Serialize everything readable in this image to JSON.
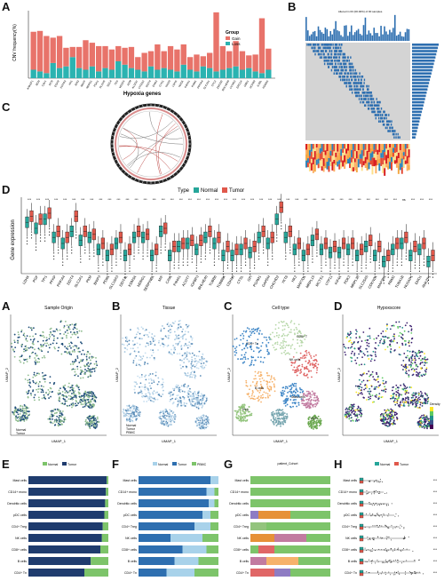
{
  "panel_letters": [
    "A",
    "B",
    "C",
    "D",
    "A",
    "B",
    "C",
    "D",
    "E",
    "F",
    "G",
    "H"
  ],
  "colors": {
    "teal": "#2bb3b1",
    "salmon": "#e8736a",
    "normal": "#26a69a",
    "tumor": "#e0584b",
    "navy": "#1f3c6e",
    "blue": "#2e6fb0",
    "lightblue": "#a8d2ea",
    "green": "#7dc46a",
    "purple": "#3b1f6e",
    "yellow": "#f0e442"
  },
  "panelA": {
    "ylabel": "CNV frequency(%)",
    "xlabel": "Hypoxia genes",
    "legend_title": "Group",
    "legend_items": [
      "Gain",
      "Loss"
    ],
    "genes": [
      "ANKZF1",
      "BGN",
      "CAV1",
      "DCN",
      "EGFR",
      "FOXO3",
      "HK1",
      "IER3",
      "MAFF",
      "NDRG1",
      "PGK1",
      "PLAUR",
      "SDC4",
      "TES",
      "VEGFA",
      "ADM",
      "ALDOC",
      "CITED2",
      "DDIT4",
      "ENO2",
      "GYS1",
      "ISG20",
      "LDHA",
      "NAGK",
      "P4HA1",
      "PGM1",
      "PPFIA4",
      "SLC2A1",
      "STC2",
      "ZNF292",
      "BHLHE40",
      "CCNG2",
      "ERO1A",
      "GBE1",
      "HOXB9",
      "ILVBL",
      "KDM3A"
    ],
    "gain": [
      45,
      48,
      44,
      30,
      38,
      22,
      12,
      25,
      35,
      28,
      30,
      26,
      24,
      18,
      20,
      25,
      15,
      22,
      18,
      30,
      20,
      28,
      26,
      24,
      15,
      20,
      12,
      18,
      70,
      28,
      20,
      30,
      22,
      15,
      20,
      65,
      25
    ],
    "loss": [
      10,
      8,
      6,
      18,
      12,
      14,
      25,
      12,
      10,
      14,
      8,
      12,
      10,
      20,
      16,
      12,
      10,
      8,
      14,
      10,
      12,
      10,
      8,
      16,
      10,
      8,
      14,
      12,
      8,
      10,
      12,
      14,
      10,
      12,
      8,
      6,
      10
    ]
  },
  "panelB": {
    "title": "Altered in 00 (00.00%) of 00 samples."
  },
  "panelD": {
    "legend_title": "Type",
    "legend_items": [
      "Normal",
      "Tumor"
    ],
    "ylabel": "Gene expression",
    "genes": [
      "LDHA",
      "PGF",
      "TPI1",
      "PFKP",
      "PPFIA4",
      "DDIT4",
      "SLC2A1",
      "PKM",
      "BNIP3",
      "PDK1",
      "SLC16A3",
      "DDIT4L",
      "KDM3A",
      "NDRG1",
      "SERPINE1",
      "MIF",
      "CAV1",
      "P4HA1",
      "ACOT7",
      "IGFBP3",
      "BHLHE40",
      "TUBB6",
      "TUBB6A",
      "CDKN3",
      "CTSL",
      "GPI",
      "PGAM1",
      "GAPDH",
      "CHCHD2",
      "YKT6",
      "HK2",
      "MAP7D1",
      "MRPL15",
      "MCTS1",
      "UTP11",
      "KIF4A",
      "PDK3",
      "MRPL13",
      "SLC25A5",
      "CDKN2A",
      "MAP3K1",
      "RRM2",
      "TUBA1B",
      "NUSAP1",
      "ENO1",
      "ANKZF1"
    ],
    "normal_vals": [
      8.5,
      7.5,
      9,
      6,
      5,
      7,
      5.5,
      6,
      4,
      3,
      5,
      3,
      6,
      6,
      3,
      7,
      3,
      4.5,
      5,
      4,
      6,
      5,
      3,
      3,
      4,
      3.5,
      6,
      5,
      9,
      6,
      4,
      3,
      5.5,
      4,
      3.5,
      3.5,
      4,
      3,
      4.5,
      3,
      2,
      4,
      5,
      3,
      4,
      2
    ],
    "tumor_vals": [
      9.5,
      9,
      10,
      7,
      6,
      9.5,
      7,
      6.5,
      5,
      4,
      6,
      4,
      7,
      6.5,
      4,
      7.5,
      4.5,
      5,
      5.5,
      5.5,
      7,
      6,
      4.5,
      4,
      5,
      4.5,
      7,
      6,
      11,
      7,
      5,
      4,
      6.5,
      5,
      4.5,
      5,
      5,
      4,
      5.5,
      4.5,
      3,
      5,
      6,
      4.5,
      5,
      3
    ],
    "significance": [
      "***",
      "***",
      "***",
      "***",
      "***",
      "***",
      "***",
      "***",
      "***",
      "***",
      "***",
      "***",
      "***",
      "***",
      "***",
      "***",
      "***",
      "***",
      "***",
      "***",
      "***",
      "***",
      "***",
      "***",
      "***",
      "***",
      "***",
      "***",
      "***",
      "***",
      "***",
      "***",
      "***",
      "***",
      "***",
      "***",
      "***",
      "***",
      "***",
      "***",
      "***",
      "***",
      "ns",
      "***",
      "***",
      "***"
    ]
  },
  "umap": {
    "titles": [
      "Sample Origin",
      "Tissue",
      "Cell type",
      "Hypoxscore"
    ],
    "legend_origin": [
      "Normal",
      "Tumor"
    ],
    "legend_tissue": [
      "Normal",
      "Tumor",
      "PBMC"
    ],
    "legend_density": "Density",
    "axis_x": "UMAP_1",
    "axis_y": "UMAP_2",
    "cell_type_labels": [
      "CD4+ Tn",
      "NK cells",
      "CD8+ T",
      "B cells",
      "Mast cells",
      "pDC",
      "Treg"
    ]
  },
  "bars_E": {
    "legend": [
      "Normal",
      "Tumor"
    ],
    "rows": [
      "Mast cells",
      "CD14+ mono",
      "Dendritic cells",
      "pDC cells",
      "CD4+ Treg",
      "NK cells",
      "CD8+ cells",
      "B cells",
      "CD4+ Tn"
    ],
    "tumor_frac": [
      0.98,
      0.97,
      0.96,
      0.95,
      0.93,
      0.92,
      0.9,
      0.78,
      0.7
    ]
  },
  "bars_F": {
    "legend": [
      "Normal",
      "Tumor",
      "PBMC"
    ],
    "rows": [
      "Mast cells",
      "CD14+ mono",
      "Dendritic cells",
      "pDC cells",
      "CD4+ Treg",
      "NK cells",
      "CD8+ cells",
      "B cells",
      "CD4+ Tn"
    ],
    "seg1": [
      0.0,
      0.05,
      0.05,
      0.1,
      0.1,
      0.2,
      0.15,
      0.25,
      0.3
    ],
    "seg2": [
      0.9,
      0.85,
      0.88,
      0.8,
      0.7,
      0.4,
      0.55,
      0.45,
      0.35
    ]
  },
  "bars_G": {
    "legend_title": "patient_Cohort",
    "rows": [
      "Mast cells",
      "CD14+ mono",
      "Dendritic cells",
      "pDC cells",
      "CD4+ Treg",
      "NK cells",
      "CD8+ cells",
      "B cells",
      "CD4+ Tn"
    ]
  },
  "bars_H": {
    "legend": [
      "Normal",
      "Tumor"
    ],
    "rows": [
      "Mast cells",
      "CD14+ mono",
      "Dendritic cells",
      "pDC cells",
      "CD4+ Treg",
      "NK cells",
      "CD8+ cells",
      "B cells",
      "CD4+ Tn"
    ],
    "sig": [
      "***",
      "***",
      "***",
      "***",
      "***",
      "***",
      "***",
      "***",
      "***"
    ]
  }
}
